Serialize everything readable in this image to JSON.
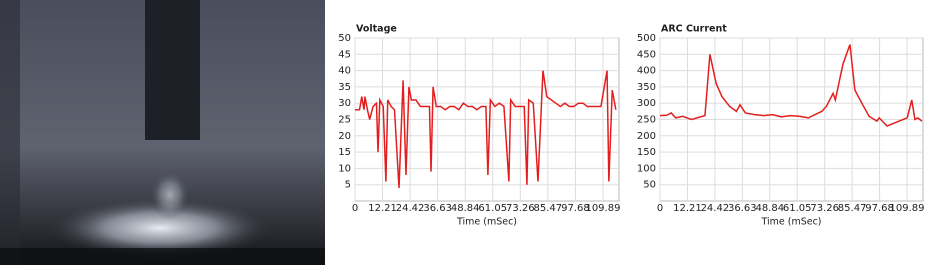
{
  "chart_data": [
    {
      "type": "line",
      "title": "Voltage",
      "x_label": "Time (mSec)",
      "color": "#e41e1e",
      "grid": true,
      "x": [
        0,
        2,
        3,
        4,
        4.4,
        5.5,
        6.5,
        8,
        9.5,
        10.2,
        11,
        12.5,
        13.7,
        14.5,
        16,
        17.5,
        19.5,
        21.3,
        22.6,
        23.9,
        25,
        27,
        29,
        31,
        33,
        33.7,
        34.6,
        36,
        38,
        40,
        42,
        44,
        46,
        48,
        50,
        52,
        54,
        56,
        58,
        58.9,
        60,
        62,
        64,
        66,
        68.2,
        69,
        71,
        73,
        75,
        76.2,
        77,
        79,
        81.1,
        83.3,
        85,
        87,
        89,
        91,
        93,
        95,
        97,
        99,
        101,
        103,
        105,
        107,
        109,
        111.7,
        112.5,
        114,
        115.6
      ],
      "values": [
        28,
        28,
        32,
        28,
        32,
        28,
        25,
        29,
        30,
        15,
        31,
        29,
        6,
        31,
        29,
        28,
        4,
        37,
        8,
        35,
        31,
        31,
        29,
        29,
        29,
        9,
        35,
        29,
        29,
        28,
        29,
        29,
        28,
        30,
        29,
        29,
        28,
        29,
        29,
        8,
        31,
        29,
        30,
        29,
        6,
        31,
        29,
        29,
        29,
        5,
        31,
        30,
        6,
        40,
        32,
        31,
        30,
        29,
        30,
        29,
        29,
        30,
        30,
        29,
        29,
        29,
        29,
        40,
        6,
        34,
        28
      ],
      "xlim": [
        0,
        117
      ],
      "xticks": [
        0,
        12.21,
        24.42,
        36.63,
        48.84,
        61.05,
        73.26,
        85.47,
        97.68,
        109.89
      ],
      "ylim": [
        0,
        50
      ],
      "yticks": [
        5,
        10,
        15,
        20,
        25,
        30,
        35,
        40,
        45,
        50
      ]
    },
    {
      "type": "line",
      "title": "ARC Current",
      "x_label": "Time (mSec)",
      "color": "#e41e1e",
      "grid": true,
      "x": [
        0,
        3,
        5,
        7,
        10,
        14,
        18,
        20,
        22.2,
        25,
        27.6,
        31,
        34,
        35.6,
        38,
        42,
        46,
        50,
        54,
        58,
        62,
        66,
        69,
        72,
        74,
        77,
        78,
        81.4,
        84.5,
        86.7,
        89.8,
        93,
        96.5,
        97.5,
        101,
        104.5,
        110,
        112,
        113.4,
        114.7,
        116.5
      ],
      "values": [
        262,
        263,
        270,
        255,
        260,
        250,
        258,
        262,
        450,
        360,
        320,
        290,
        275,
        295,
        270,
        265,
        262,
        265,
        258,
        262,
        260,
        255,
        265,
        275,
        290,
        330,
        310,
        420,
        480,
        340,
        300,
        260,
        245,
        255,
        230,
        240,
        255,
        310,
        250,
        255,
        245
      ],
      "xlim": [
        0,
        117
      ],
      "xticks": [
        0,
        12.21,
        24.42,
        36.63,
        48.84,
        61.05,
        73.26,
        85.47,
        97.68,
        109.89
      ],
      "ylim": [
        0,
        500
      ],
      "yticks": [
        50,
        100,
        150,
        200,
        250,
        300,
        350,
        400,
        450,
        500
      ]
    }
  ]
}
